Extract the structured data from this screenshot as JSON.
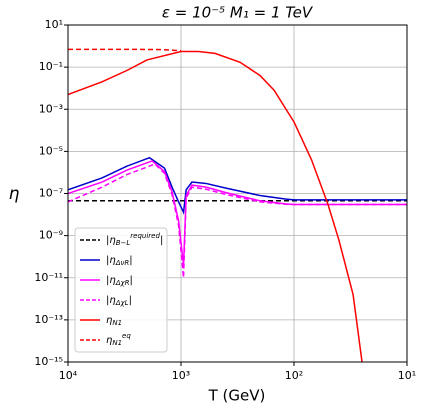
{
  "chart_data": {
    "type": "line",
    "title": "ε = 10⁻⁵   M₁ = 1 TeV",
    "x_label": "T (GeV)",
    "y_label": "η",
    "xscale": "log",
    "yscale": "log",
    "grid": true,
    "legend": "lower left",
    "xlim": [
      10000,
      10
    ],
    "ylim": [
      1e-15,
      10
    ],
    "xticks": [
      {
        "value": 10000,
        "label": "10⁴"
      },
      {
        "value": 1000,
        "label": "10³"
      },
      {
        "value": 100,
        "label": "10²"
      },
      {
        "value": 10,
        "label": "10¹"
      }
    ],
    "yticks": [
      {
        "value": 10,
        "label": "10¹"
      },
      {
        "value": 0.1,
        "label": "10⁻¹"
      },
      {
        "value": 0.001,
        "label": "10⁻³"
      },
      {
        "value": 1e-05,
        "label": "10⁻⁵"
      },
      {
        "value": 1e-07,
        "label": "10⁻⁷"
      },
      {
        "value": 1e-09,
        "label": "10⁻⁹"
      },
      {
        "value": 1e-11,
        "label": "10⁻¹¹"
      },
      {
        "value": 1e-13,
        "label": "10⁻¹³"
      },
      {
        "value": 1e-15,
        "label": "10⁻¹⁵"
      }
    ],
    "series": [
      {
        "name": "|η_{B−L}^{required}|",
        "color": "#000000",
        "dash": true,
        "x": [
          10000,
          10
        ],
        "values": [
          4.5e-08,
          4.5e-08
        ]
      },
      {
        "name": "|η_{Δν_R}|",
        "color": "#0000cc",
        "dash": false,
        "x": [
          10000,
          5000,
          3000,
          1900,
          1400,
          1200,
          1050,
          950,
          900,
          800,
          600,
          400,
          200,
          120,
          100,
          10
        ],
        "values": [
          1.5e-07,
          5.5e-07,
          2e-06,
          5e-06,
          1.6e-06,
          2e-07,
          4e-08,
          1.3e-08,
          1.5e-07,
          3.5e-07,
          3e-07,
          1.8e-07,
          8e-08,
          5.5e-08,
          5e-08,
          5e-08
        ]
      },
      {
        "name": "|η_{Δχ_R}|",
        "color": "#ff00ff",
        "dash": false,
        "x": [
          10000,
          5000,
          3000,
          1800,
          1400,
          1200,
          1050,
          950,
          900,
          800,
          600,
          400,
          200,
          120,
          100,
          10
        ],
        "values": [
          1e-07,
          3.5e-07,
          1.3e-06,
          3.5e-06,
          1.1e-06,
          1.2e-07,
          5e-09,
          4e-11,
          8e-08,
          2.5e-07,
          2e-07,
          1.1e-07,
          4.5e-08,
          3.2e-08,
          3e-08,
          3e-08
        ]
      },
      {
        "name": "|η_{Δχ_L}|",
        "color": "#ff00ff",
        "dash": true,
        "x": [
          10000,
          5000,
          3000,
          1700,
          1400,
          1200,
          1050,
          950,
          900,
          800,
          600,
          400,
          200,
          120,
          100,
          10
        ],
        "values": [
          4e-08,
          2e-07,
          8e-07,
          2.5e-06,
          9e-07,
          9e-08,
          3e-09,
          1e-11,
          6e-08,
          2e-07,
          1.6e-07,
          9e-08,
          4e-08,
          3.1e-08,
          3e-08,
          3e-08
        ]
      },
      {
        "name": "η_{N_1}",
        "color": "#ff0000",
        "dash": false,
        "x": [
          10000,
          5000,
          3000,
          2000,
          1000,
          700,
          500,
          300,
          200,
          150,
          100,
          70,
          50,
          40,
          30,
          25
        ],
        "values": [
          0.005,
          0.02,
          0.07,
          0.22,
          0.55,
          0.55,
          0.45,
          0.17,
          0.04,
          0.008,
          0.00025,
          4e-06,
          3e-08,
          6e-10,
          1.6e-12,
          1e-15
        ]
      },
      {
        "name": "η_{N_1}^{eq}",
        "color": "#ff0000",
        "dash": true,
        "x": [
          10000,
          3000,
          1500,
          1000
        ],
        "values": [
          0.7,
          0.7,
          0.68,
          0.6
        ]
      }
    ]
  }
}
